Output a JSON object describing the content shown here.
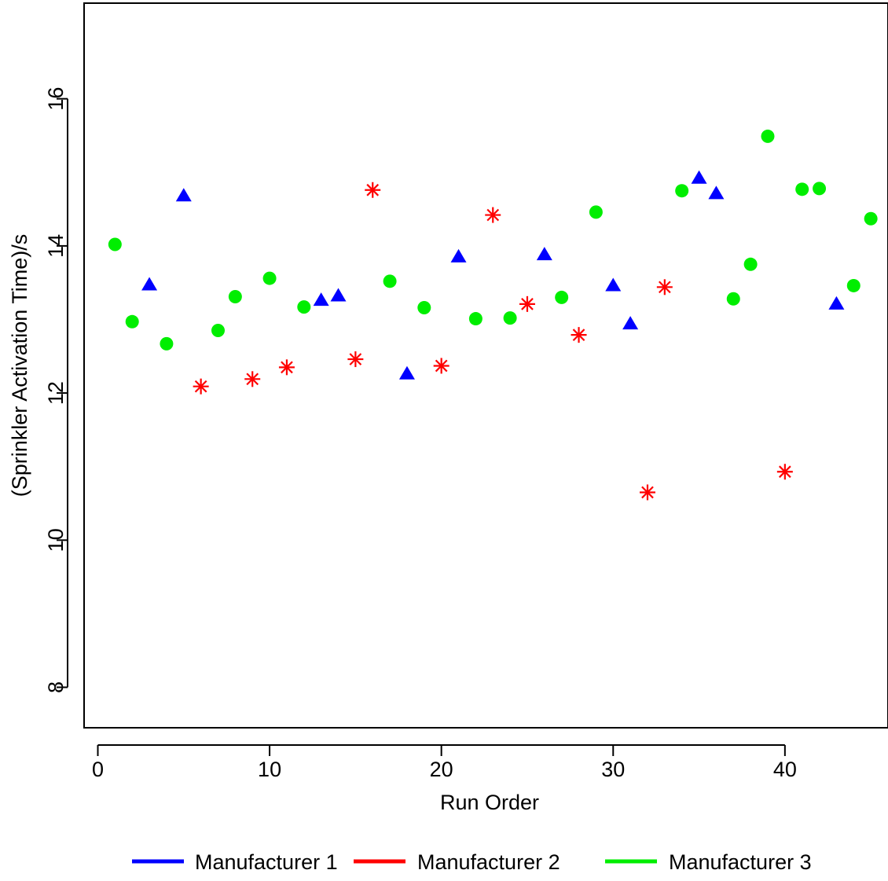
{
  "chart_data": {
    "type": "scatter",
    "title": "",
    "xlabel": "Run Order",
    "ylabel": "(Sprinkler Activation Time)/s",
    "xlim": [
      -0.8,
      46
    ],
    "ylim": [
      7.45,
      17.3
    ],
    "xticks": [
      0,
      10,
      20,
      30,
      40
    ],
    "yticks": [
      8,
      10,
      12,
      14,
      16
    ],
    "grid": false,
    "legend_position": "bottom",
    "series": [
      {
        "name": "Manufacturer 1",
        "color": "#0000ff",
        "marker": "triangle",
        "points": [
          [
            3,
            13.47
          ],
          [
            5,
            14.68
          ],
          [
            13,
            13.26
          ],
          [
            14,
            13.32
          ],
          [
            18,
            12.26
          ],
          [
            21,
            13.85
          ],
          [
            26,
            13.88
          ],
          [
            30,
            13.46
          ],
          [
            31,
            12.94
          ],
          [
            35,
            14.92
          ],
          [
            36,
            14.71
          ],
          [
            43,
            13.21
          ]
        ]
      },
      {
        "name": "Manufacturer 2",
        "color": "#ff0000",
        "marker": "asterisk",
        "points": [
          [
            6,
            12.09
          ],
          [
            9,
            12.19
          ],
          [
            11,
            12.35
          ],
          [
            15,
            12.46
          ],
          [
            16,
            14.76
          ],
          [
            20,
            12.37
          ],
          [
            23,
            14.42
          ],
          [
            25,
            13.21
          ],
          [
            28,
            12.79
          ],
          [
            32,
            10.65
          ],
          [
            33,
            13.44
          ],
          [
            40,
            10.93
          ]
        ]
      },
      {
        "name": "Manufacturer 3",
        "color": "#00ee00",
        "marker": "circle",
        "points": [
          [
            1,
            14.02
          ],
          [
            2,
            12.97
          ],
          [
            4,
            12.67
          ],
          [
            7,
            12.85
          ],
          [
            8,
            13.31
          ],
          [
            10,
            13.56
          ],
          [
            12,
            13.17
          ],
          [
            17,
            13.52
          ],
          [
            19,
            13.16
          ],
          [
            22,
            13.01
          ],
          [
            24,
            13.02
          ],
          [
            27,
            13.3
          ],
          [
            29,
            14.46
          ],
          [
            34,
            14.75
          ],
          [
            37,
            13.28
          ],
          [
            38,
            13.75
          ],
          [
            39,
            15.49
          ],
          [
            41,
            14.77
          ],
          [
            42,
            14.78
          ],
          [
            44,
            13.46
          ],
          [
            45,
            14.37
          ]
        ]
      }
    ]
  }
}
